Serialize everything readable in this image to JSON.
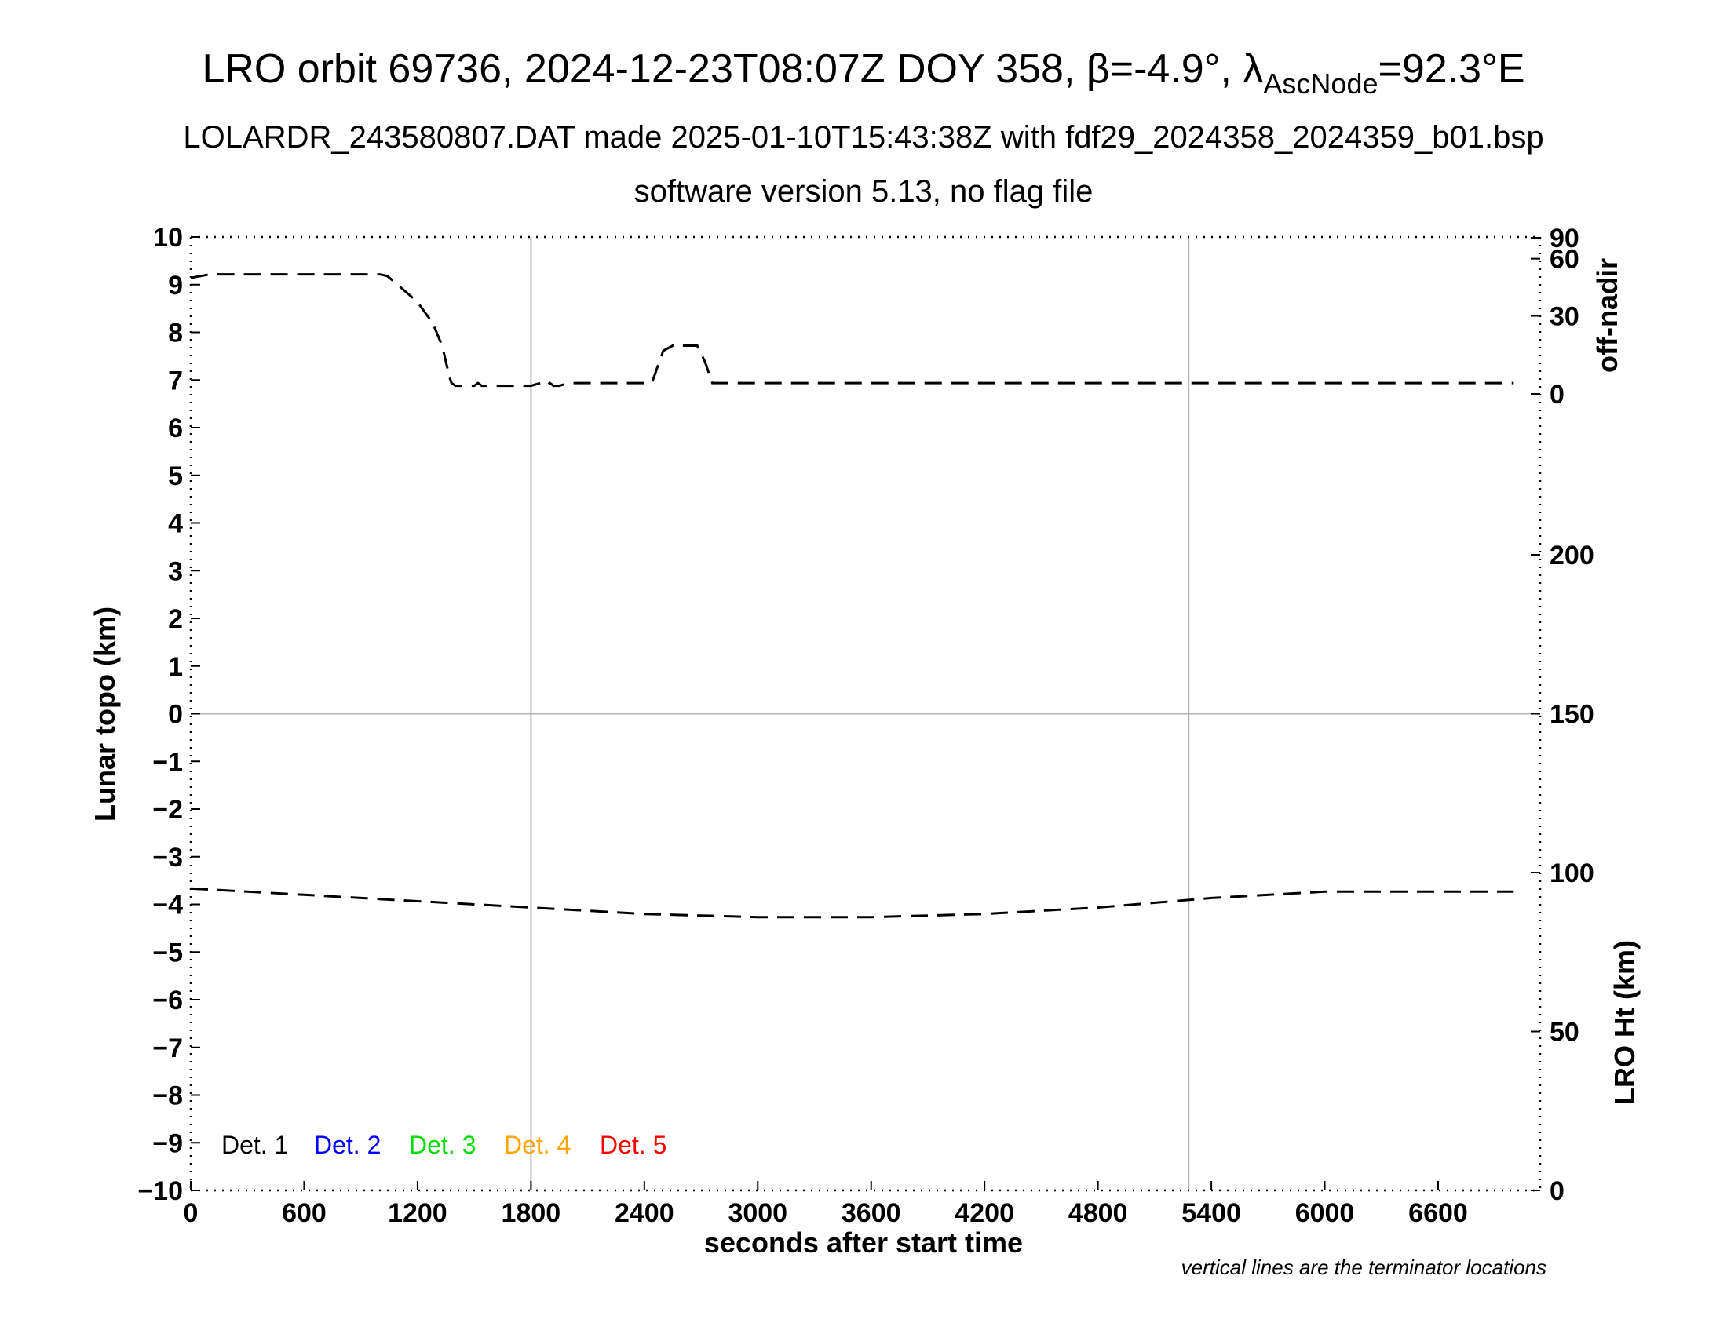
{
  "header": {
    "title_main": "LRO orbit 69736, 2024-12-23T08:07Z DOY 358, β=-4.9°, λ",
    "title_sub": "AscNode",
    "title_end": "=92.3°E",
    "subtitle1": "LOLARDR_243580807.DAT made 2025-01-10T15:43:38Z with fdf29_2024358_2024359_b01.bsp",
    "subtitle2": "software version 5.13, no flag file"
  },
  "footnote": "vertical lines are the terminator locations",
  "chart_data": {
    "type": "line",
    "xlabel": "seconds after start time",
    "ylabel": "Lunar topo (km)",
    "y2label_top": "off-nadir",
    "y2label_bottom": "LRO Ht (km)",
    "xlim": [
      0,
      7140
    ],
    "ylim": [
      -10,
      10
    ],
    "x_ticks": [
      0,
      600,
      1200,
      1800,
      2400,
      3000,
      3600,
      4200,
      4800,
      5400,
      6000,
      6600
    ],
    "x_tick_labels": [
      "0",
      "600",
      "1200",
      "1800",
      "2400",
      "3000",
      "3600",
      "4200",
      "4800",
      "5400",
      "6000",
      "6600"
    ],
    "y_ticks": [
      10,
      9,
      8,
      7,
      6,
      5,
      4,
      3,
      2,
      1,
      0,
      -1,
      -2,
      -3,
      -4,
      -5,
      -6,
      -7,
      -8,
      -9,
      -10
    ],
    "y_tick_labels": [
      "10",
      "9",
      "8",
      "7",
      "6",
      "5",
      "4",
      "3",
      "2",
      "1",
      "0",
      "−1",
      "−2",
      "−3",
      "−4",
      "−5",
      "−6",
      "−7",
      "−8",
      "−9",
      "−10"
    ],
    "offnadir_scale": {
      "ticks": [
        0,
        30,
        60,
        90
      ],
      "tick_labels": [
        "0",
        "30",
        "60",
        "90"
      ]
    },
    "height_scale": {
      "range_km": [
        0,
        300
      ],
      "ticks": [
        0,
        50,
        100,
        150,
        200
      ],
      "tick_labels": [
        "0",
        "50",
        "100",
        "150",
        "200"
      ]
    },
    "terminator_lines_x": [
      1800,
      5280
    ],
    "zero_line_y": 0,
    "grid": false,
    "legend_position": "bottom-left",
    "legend": [
      {
        "name": "Det. 1",
        "color": "#000000"
      },
      {
        "name": "Det. 2",
        "color": "#0000ff"
      },
      {
        "name": "Det. 3",
        "color": "#00dd00"
      },
      {
        "name": "Det. 4",
        "color": "#ffa500"
      },
      {
        "name": "Det. 5",
        "color": "#ff0000"
      }
    ],
    "series": [
      {
        "axis": "off-nadir",
        "color": "#000000",
        "style": "dashed",
        "x": [
          0,
          100,
          200,
          600,
          1000,
          1040,
          1100,
          1200,
          1280,
          1330,
          1370,
          1380,
          1400,
          1500,
          1520,
          1540,
          1600,
          1800,
          1850,
          1880,
          1900,
          1920,
          1950,
          2000,
          2440,
          2480,
          2500,
          2550,
          2600,
          2680,
          2720,
          2760,
          3000,
          4000,
          5000,
          6000,
          7000
        ],
        "y": [
          48,
          50,
          50,
          50,
          50,
          49,
          44,
          36,
          27,
          18,
          6,
          4,
          3,
          3,
          4,
          3,
          3,
          3,
          4,
          3,
          4,
          3,
          3,
          4,
          4,
          12,
          16,
          18,
          18,
          18,
          12,
          4,
          4,
          4,
          4,
          4,
          4
        ]
      },
      {
        "axis": "LRO Ht (km)",
        "color": "#000000",
        "style": "dashed",
        "x": [
          0,
          600,
          1200,
          1800,
          2400,
          3000,
          3600,
          4200,
          4800,
          5400,
          6000,
          7000
        ],
        "y": [
          95,
          93,
          91,
          89,
          87,
          86,
          86,
          87,
          89,
          92,
          94,
          94
        ]
      }
    ]
  }
}
